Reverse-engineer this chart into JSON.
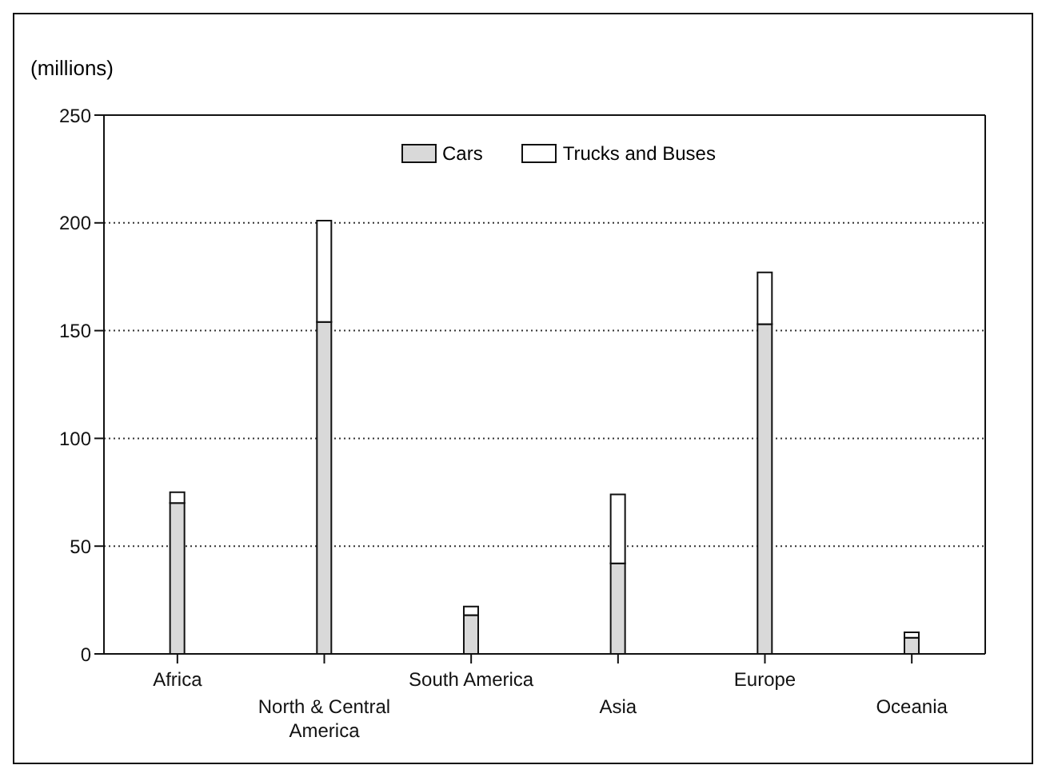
{
  "chart_data": {
    "type": "bar",
    "ylabel": "(millions)",
    "categories": [
      "Africa",
      "North & Central America",
      "South America",
      "Asia",
      "Europe",
      "Oceania"
    ],
    "stacked": true,
    "ylim": [
      0,
      250
    ],
    "yticks": [
      0,
      50,
      100,
      150,
      200,
      250
    ],
    "grid": "y",
    "legend": "top",
    "series": [
      {
        "name": "Cars",
        "color": "#d9d9d9",
        "values": [
          70,
          154,
          18,
          42,
          153,
          7.5
        ]
      },
      {
        "name": "Trucks and Buses",
        "color": "#ffffff",
        "values": [
          5,
          47,
          4,
          32,
          24,
          2.5
        ]
      }
    ]
  }
}
